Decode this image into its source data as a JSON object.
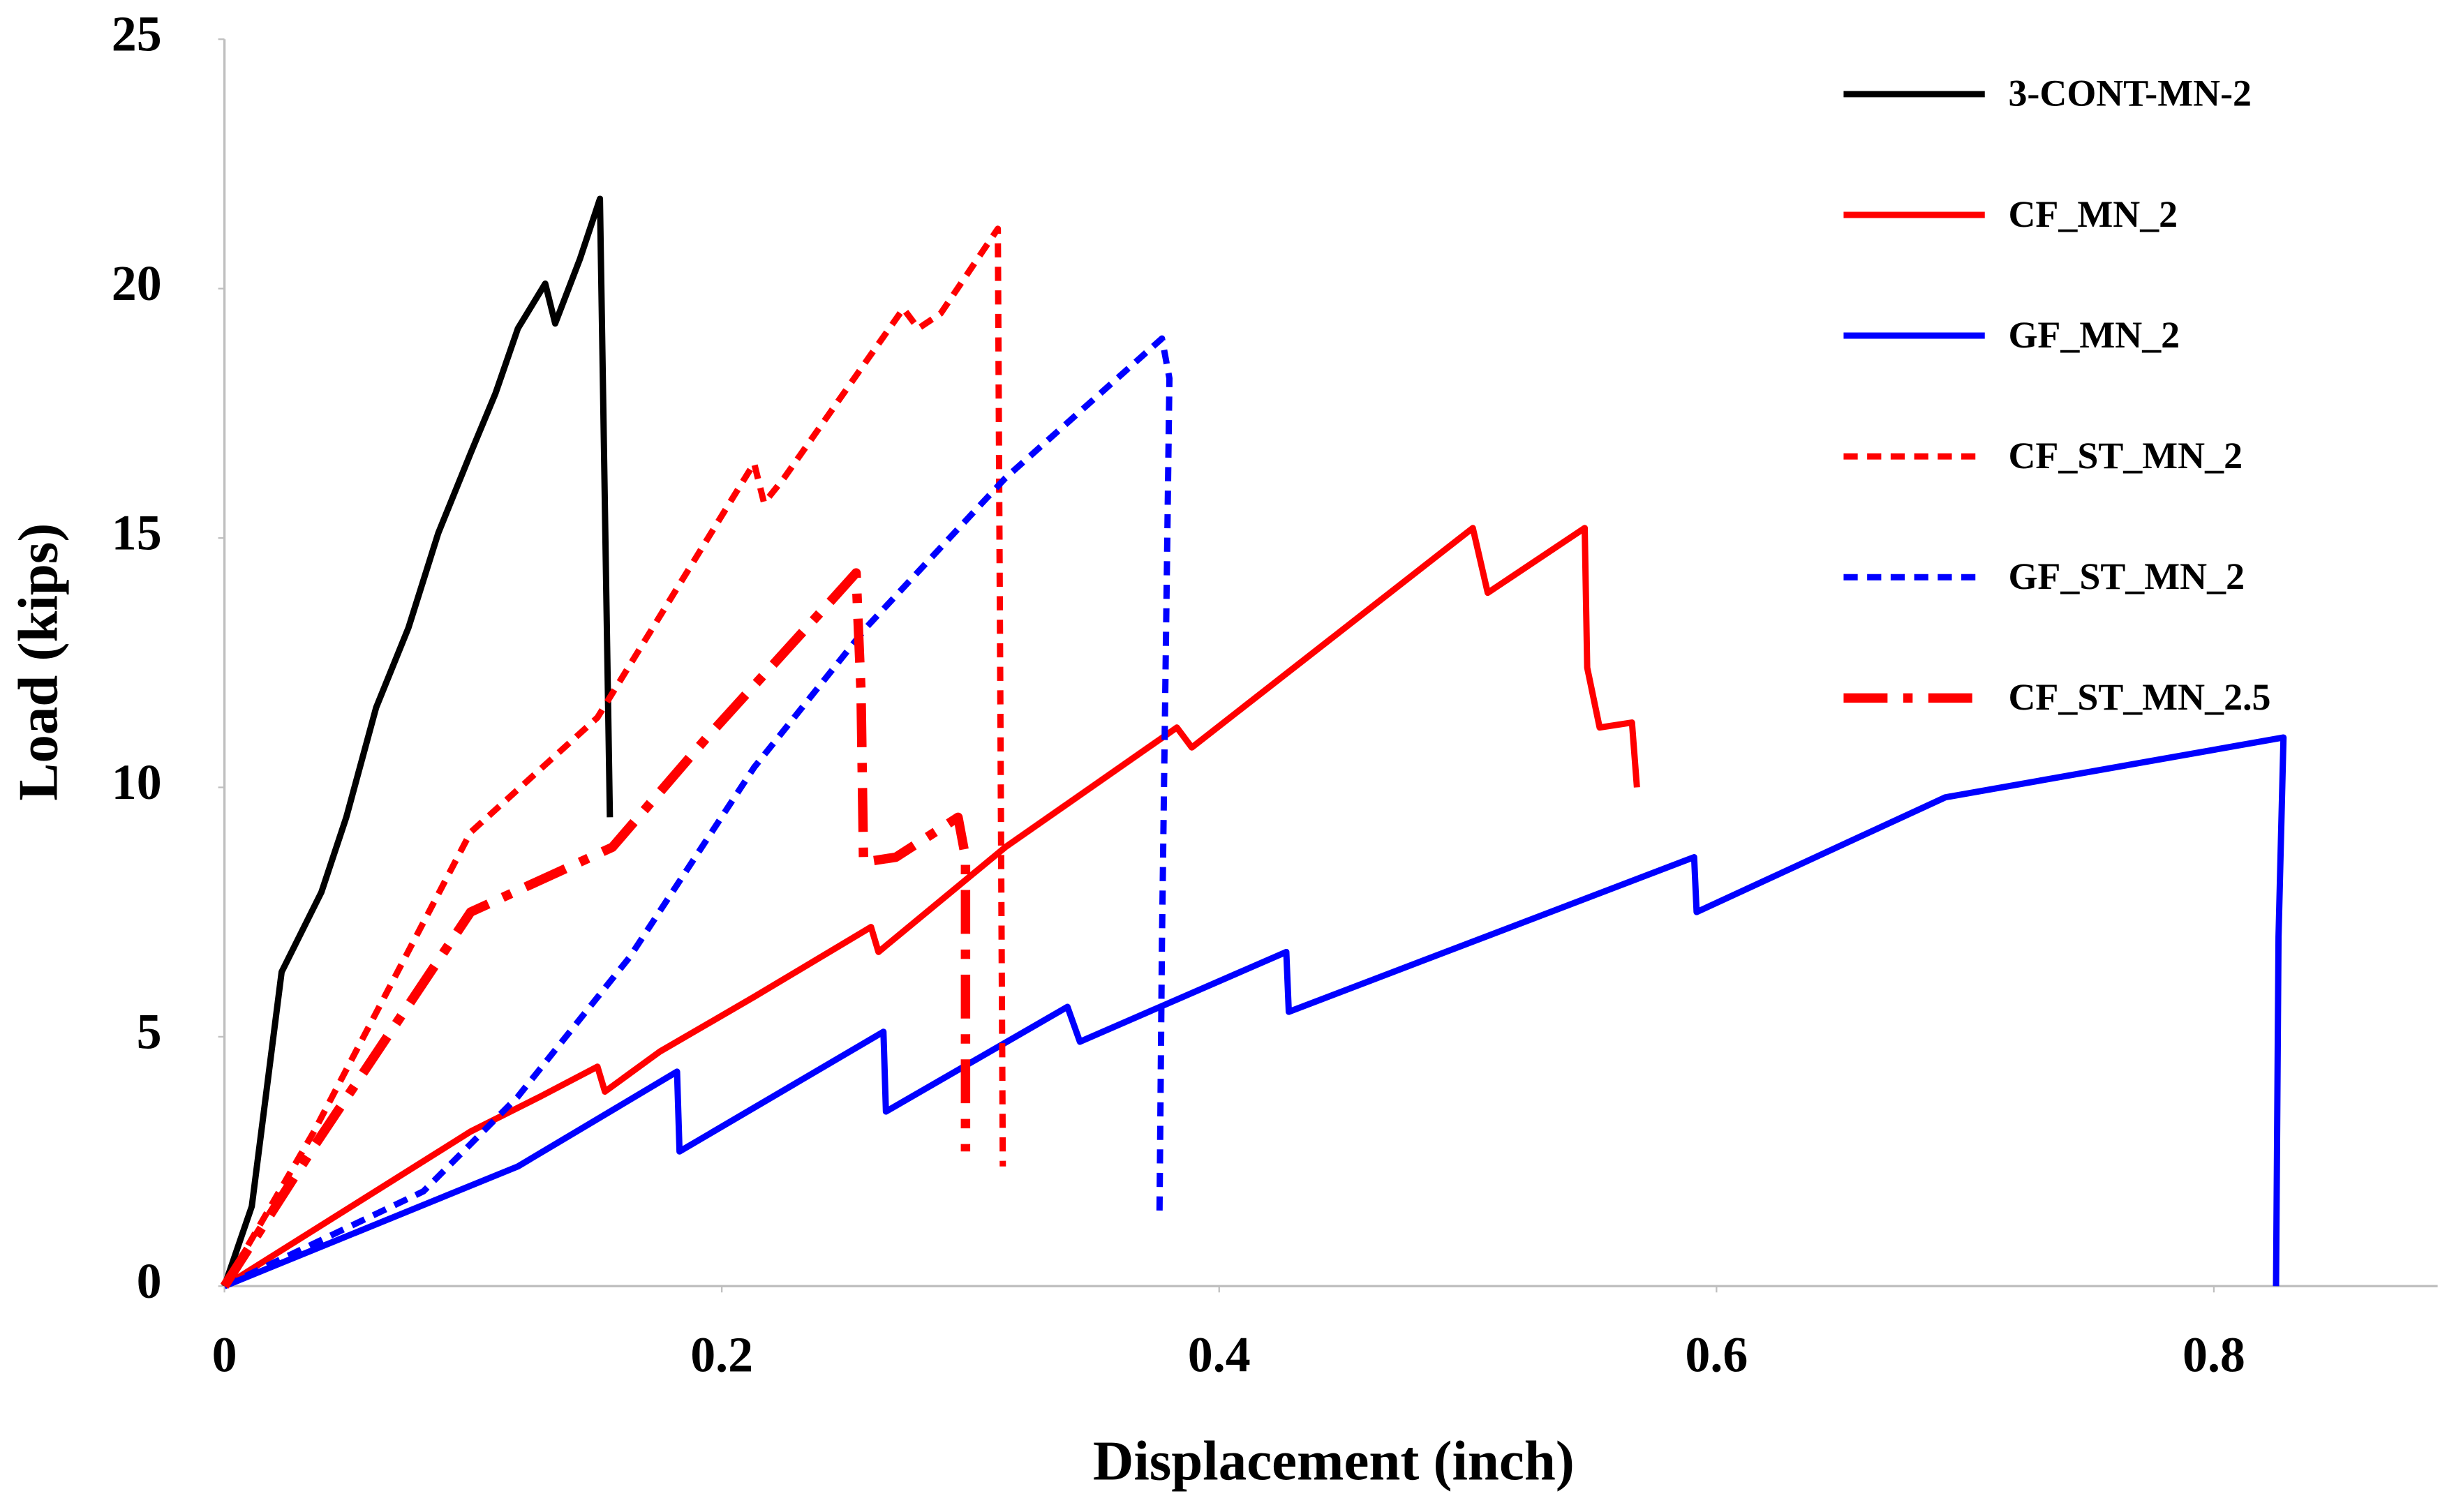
{
  "chart_data": {
    "type": "line",
    "xlabel": "Displacement (inch)",
    "ylabel": "Load (kips)",
    "xlim": [
      0,
      0.89
    ],
    "ylim": [
      0,
      25
    ],
    "xticks": [
      0,
      0.2,
      0.4,
      0.6,
      0.8
    ],
    "yticks": [
      0,
      5,
      10,
      15,
      20,
      25
    ],
    "grid": false,
    "legend": "upper right",
    "series": [
      {
        "name": "3-CONT-MN-2",
        "color": "#000000",
        "style": "solid",
        "x": [
          0,
          0.011,
          0.023,
          0.039,
          0.049,
          0.061,
          0.074,
          0.086,
          0.099,
          0.109,
          0.118,
          0.129,
          0.133,
          0.143,
          0.151,
          0.155
        ],
        "values": [
          0,
          1.6,
          6.3,
          7.9,
          9.4,
          11.6,
          13.2,
          15.1,
          16.7,
          17.9,
          19.2,
          20.1,
          19.3,
          20.6,
          21.8,
          9.4
        ]
      },
      {
        "name": "CF_MN_2",
        "color": "#ff0000",
        "style": "solid",
        "x": [
          0,
          0.099,
          0.127,
          0.15,
          0.153,
          0.175,
          0.213,
          0.26,
          0.263,
          0.314,
          0.383,
          0.389,
          0.502,
          0.508,
          0.547,
          0.548,
          0.553,
          0.566,
          0.568
        ],
        "values": [
          0,
          3.1,
          3.8,
          4.4,
          3.9,
          4.7,
          5.8,
          7.2,
          6.7,
          8.8,
          11.2,
          10.8,
          15.2,
          13.9,
          15.2,
          12.4,
          11.2,
          11.3,
          10
        ]
      },
      {
        "name": "GF_MN_2",
        "color": "#0000ff",
        "style": "solid",
        "x": [
          0,
          0.118,
          0.182,
          0.183,
          0.265,
          0.266,
          0.339,
          0.344,
          0.427,
          0.428,
          0.591,
          0.592,
          0.692,
          0.828,
          0.826,
          0.825
        ],
        "values": [
          0,
          2.4,
          4.3,
          2.7,
          5.1,
          3.5,
          5.6,
          4.9,
          6.7,
          5.5,
          8.6,
          7.5,
          9.8,
          11,
          7,
          0
        ]
      },
      {
        "name": "CF_ST_MN_2",
        "color": "#ff0000",
        "style": "dashed",
        "x": [
          0,
          0.036,
          0.099,
          0.15,
          0.213,
          0.217,
          0.225,
          0.273,
          0.279,
          0.288,
          0.311,
          0.313
        ],
        "values": [
          0,
          3.1,
          9.1,
          11.4,
          16.5,
          15.7,
          16.2,
          19.6,
          19.2,
          19.5,
          21.2,
          2.4
        ]
      },
      {
        "name": "GF_ST_MN_2",
        "color": "#0000ff",
        "style": "dashed",
        "x": [
          0,
          0.08,
          0.118,
          0.163,
          0.213,
          0.258,
          0.314,
          0.377,
          0.38,
          0.377,
          0.376
        ],
        "values": [
          0,
          1.9,
          3.8,
          6.6,
          10.4,
          13.2,
          16.2,
          19,
          18.2,
          6.9,
          1.4
        ]
      },
      {
        "name": "CF_ST_MN_2.5",
        "color": "#ff0000",
        "style": "dashdot",
        "x": [
          0,
          0.036,
          0.099,
          0.156,
          0.194,
          0.245,
          0.254,
          0.256,
          0.257,
          0.27,
          0.295,
          0.298,
          0.298
        ],
        "values": [
          0,
          2.8,
          7.5,
          8.8,
          11,
          13.8,
          14.3,
          11.9,
          8.5,
          8.6,
          9.4,
          8.6,
          2.7
        ]
      }
    ]
  }
}
